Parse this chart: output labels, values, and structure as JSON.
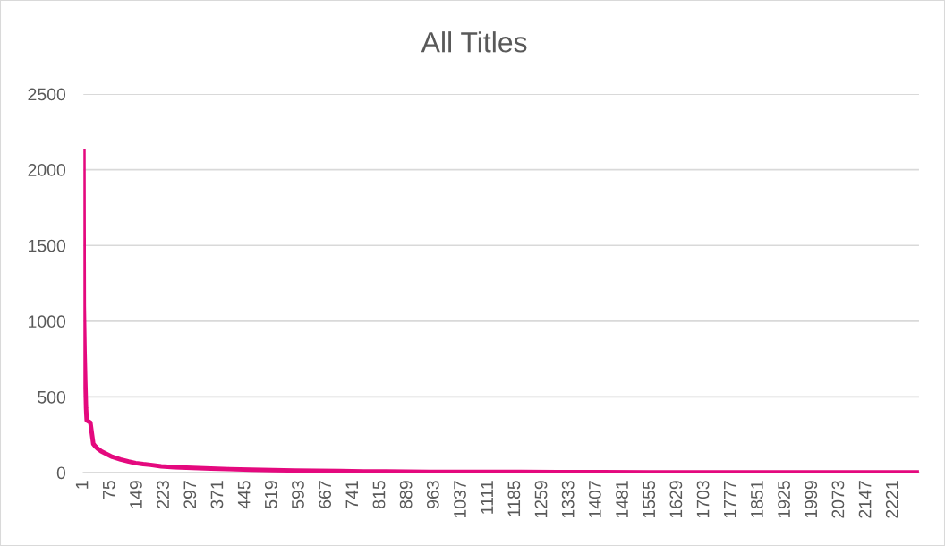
{
  "chart_data": {
    "type": "line",
    "title": "All Titles",
    "x": [
      1,
      2,
      4,
      6,
      8,
      10,
      20,
      24,
      28,
      34,
      40,
      50,
      62,
      80,
      103,
      125,
      144,
      165,
      185,
      214,
      250,
      300,
      350,
      400,
      459,
      520,
      580,
      640,
      704,
      770,
      830,
      890,
      950,
      1020,
      1100,
      1200,
      1300,
      1420,
      1550,
      1680,
      1800,
      1900,
      2000,
      2150,
      2291
    ],
    "values": [
      2140,
      1100,
      800,
      600,
      430,
      345,
      330,
      260,
      190,
      172,
      158,
      140,
      126,
      104,
      87,
      73,
      63,
      56,
      51,
      42,
      36,
      31,
      27,
      23,
      20,
      17,
      14,
      12,
      10,
      8,
      7,
      6,
      5,
      5,
      4,
      4,
      3,
      3,
      2,
      2,
      2,
      2,
      1,
      1,
      1
    ],
    "color": "#e4097e",
    "xlim": [
      1,
      2291
    ],
    "xticks": [
      1,
      75,
      149,
      223,
      297,
      371,
      445,
      519,
      593,
      667,
      741,
      815,
      889,
      963,
      1037,
      1111,
      1185,
      1259,
      1333,
      1407,
      1481,
      1555,
      1629,
      1703,
      1777,
      1851,
      1925,
      1999,
      2073,
      2147,
      2221
    ],
    "ylim": [
      0,
      2500
    ],
    "yticks": [
      0,
      500,
      1000,
      1500,
      2000,
      2500
    ],
    "grid": "y",
    "marker": "none",
    "line_style": "solid"
  }
}
